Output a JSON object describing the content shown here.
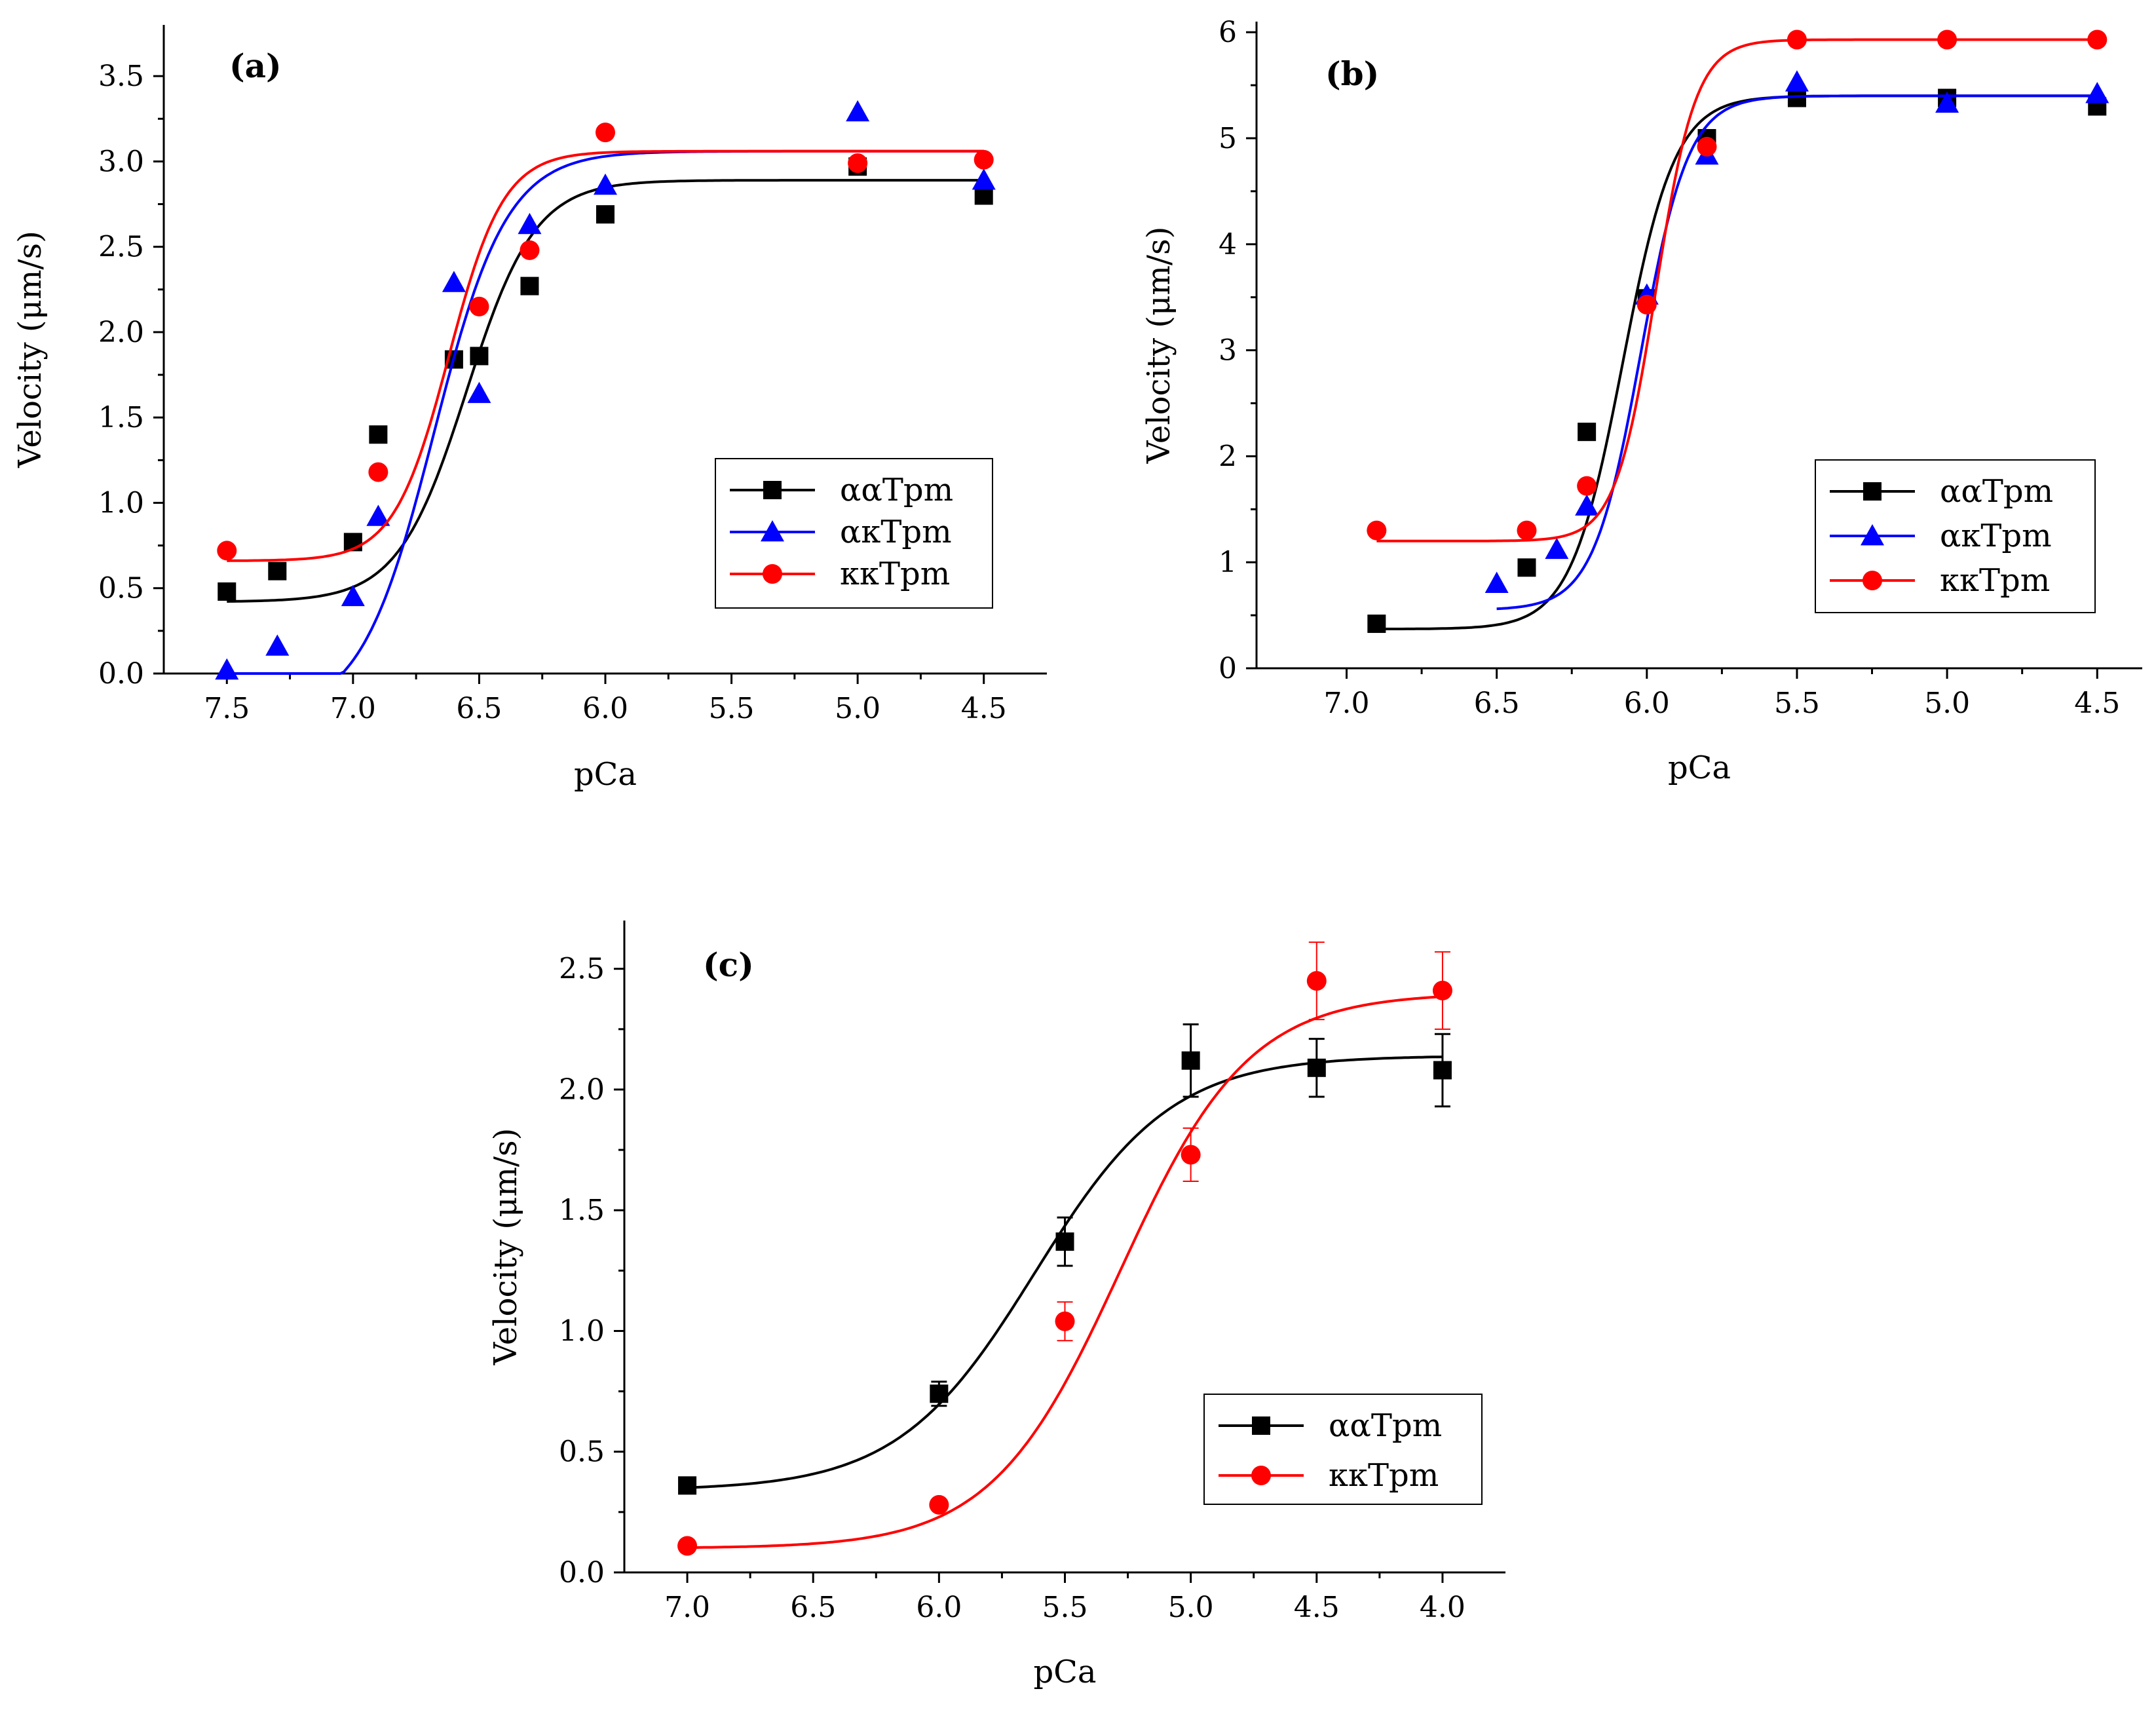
{
  "chart_data": [
    {
      "type": "scatter",
      "panel_label": "(a)",
      "xlabel": "pCa",
      "ylabel": "Velocity (μm/s)",
      "xlim": [
        7.75,
        4.25
      ],
      "ylim": [
        0,
        3.8
      ],
      "xticks": [
        7.5,
        7.0,
        6.5,
        6.0,
        5.5,
        5.0,
        4.5
      ],
      "xtick_labels": [
        "7.5",
        "7.0",
        "6.5",
        "6.0",
        "5.5",
        "5.0",
        "4.5"
      ],
      "yticks": [
        0,
        0.5,
        1.0,
        1.5,
        2.0,
        2.5,
        3.0,
        3.5
      ],
      "ytick_labels": [
        "0.0",
        "0.5",
        "1.0",
        "1.5",
        "2.0",
        "2.5",
        "3.0",
        "3.5"
      ],
      "legend_position": "center-right",
      "series": [
        {
          "name": "ααTpm",
          "color": "#000000",
          "marker": "square",
          "x": [
            7.5,
            7.3,
            7.0,
            6.9,
            6.6,
            6.5,
            6.3,
            6.0,
            5.0,
            4.5
          ],
          "y": [
            0.48,
            0.6,
            0.77,
            1.4,
            1.84,
            1.86,
            2.27,
            2.69,
            2.97,
            2.8
          ],
          "fit": {
            "bottom": 0.42,
            "top": 2.89,
            "ec50": 6.55,
            "hill": 3.2
          }
        },
        {
          "name": "ακTpm",
          "color": "#0000ff",
          "marker": "triangle",
          "x": [
            7.5,
            7.3,
            7.0,
            6.9,
            6.6,
            6.5,
            6.3,
            6.0,
            5.0,
            4.5
          ],
          "y": [
            0.02,
            0.16,
            0.45,
            0.92,
            2.29,
            1.64,
            2.63,
            2.86,
            3.29,
            2.89
          ],
          "fit": {
            "bottom": -0.25,
            "top": 3.06,
            "ec50": 6.68,
            "hill": 3.0
          }
        },
        {
          "name": "κκTpm",
          "color": "#ff0000",
          "marker": "circle",
          "x": [
            7.5,
            6.9,
            6.5,
            6.3,
            6.0,
            5.0,
            4.5
          ],
          "y": [
            0.72,
            1.18,
            2.15,
            2.48,
            3.17,
            2.99,
            3.01
          ],
          "fit": {
            "bottom": 0.66,
            "top": 3.06,
            "ec50": 6.62,
            "hill": 4.0
          }
        }
      ]
    },
    {
      "type": "scatter",
      "panel_label": "(b)",
      "xlabel": "pCa",
      "ylabel": "Velocity (μm/s)",
      "xlim": [
        7.3,
        4.35
      ],
      "ylim": [
        0,
        6.1
      ],
      "xticks": [
        7.0,
        6.5,
        6.0,
        5.5,
        5.0,
        4.5
      ],
      "xtick_labels": [
        "7.0",
        "6.5",
        "6.0",
        "5.5",
        "5.0",
        "4.5"
      ],
      "yticks": [
        0,
        1,
        2,
        3,
        4,
        5,
        6
      ],
      "ytick_labels": [
        "0",
        "1",
        "2",
        "3",
        "4",
        "5",
        "6"
      ],
      "legend_position": "lower-right",
      "series": [
        {
          "name": "ααTpm",
          "color": "#000000",
          "marker": "square",
          "x": [
            6.9,
            6.4,
            6.2,
            6.0,
            5.8,
            5.5,
            5.0,
            4.5
          ],
          "y": [
            0.42,
            0.95,
            2.23,
            3.49,
            5.0,
            5.38,
            5.38,
            5.3
          ],
          "fit": {
            "bottom": 0.37,
            "top": 5.4,
            "ec50": 6.08,
            "hill": 5.0
          }
        },
        {
          "name": "ακTpm",
          "color": "#0000ff",
          "marker": "triangle",
          "x": [
            6.5,
            6.3,
            6.2,
            6.0,
            5.8,
            5.5,
            5.0,
            4.5
          ],
          "y": [
            0.8,
            1.12,
            1.53,
            3.52,
            4.84,
            5.53,
            5.33,
            5.42
          ],
          "fit": {
            "bottom": 0.55,
            "top": 5.4,
            "ec50": 6.02,
            "hill": 5.5
          }
        },
        {
          "name": "κκTpm",
          "color": "#ff0000",
          "marker": "circle",
          "x": [
            6.9,
            6.4,
            6.2,
            6.0,
            5.8,
            5.5,
            5.0,
            4.5
          ],
          "y": [
            1.3,
            1.3,
            1.72,
            3.43,
            4.92,
            5.93,
            5.93,
            5.93
          ],
          "fit": {
            "bottom": 1.2,
            "top": 5.93,
            "ec50": 5.97,
            "hill": 6.5
          }
        }
      ]
    },
    {
      "type": "scatter",
      "panel_label": "(c)",
      "xlabel": "pCa",
      "ylabel": "Velocity (μm/s)",
      "xlim": [
        7.25,
        3.75
      ],
      "ylim": [
        0,
        2.7
      ],
      "xticks": [
        7.0,
        6.5,
        6.0,
        5.5,
        5.0,
        4.5,
        4.0
      ],
      "xtick_labels": [
        "7.0",
        "6.5",
        "6.0",
        "5.5",
        "5.0",
        "4.5",
        "4.0"
      ],
      "yticks": [
        0,
        0.5,
        1.0,
        1.5,
        2.0,
        2.5
      ],
      "ytick_labels": [
        "0.0",
        "0.5",
        "1.0",
        "1.5",
        "2.0",
        "2.5"
      ],
      "legend_position": "lower-right",
      "series": [
        {
          "name": "ααTpm",
          "color": "#000000",
          "marker": "square",
          "x": [
            7.0,
            6.0,
            5.5,
            5.0,
            4.5,
            4.0
          ],
          "y": [
            0.36,
            0.74,
            1.37,
            2.12,
            2.09,
            2.08
          ],
          "err": [
            0.03,
            0.05,
            0.1,
            0.15,
            0.12,
            0.15
          ],
          "fit": {
            "bottom": 0.34,
            "top": 2.14,
            "ec50": 5.62,
            "hill": 1.6
          }
        },
        {
          "name": "κκTpm",
          "color": "#ff0000",
          "marker": "circle",
          "x": [
            7.0,
            6.0,
            5.5,
            5.0,
            4.5,
            4.0
          ],
          "y": [
            0.11,
            0.28,
            1.04,
            1.73,
            2.45,
            2.41
          ],
          "err": [
            0.01,
            0.02,
            0.08,
            0.11,
            0.16,
            0.16
          ],
          "fit": {
            "bottom": 0.1,
            "top": 2.4,
            "ec50": 5.28,
            "hill": 1.7
          }
        }
      ]
    }
  ]
}
